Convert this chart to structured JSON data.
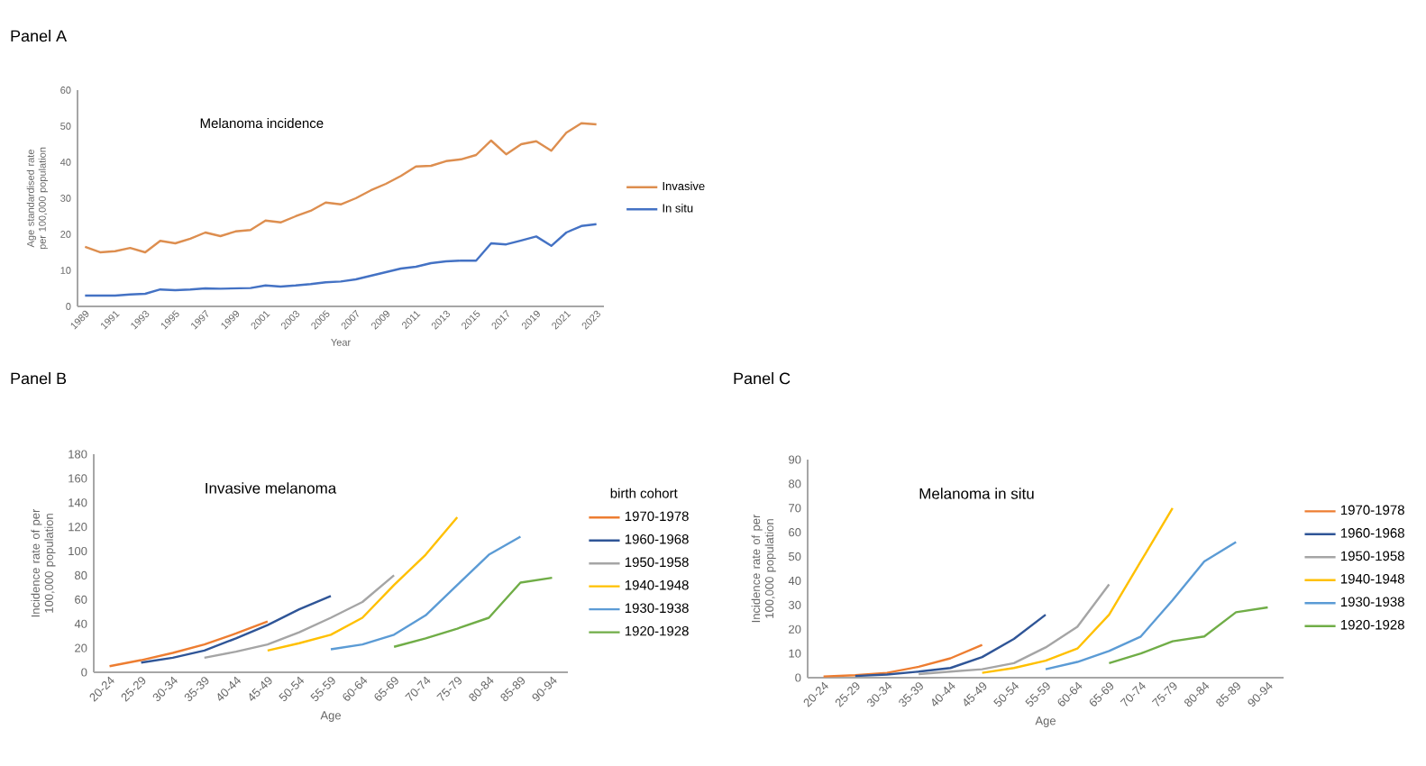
{
  "chart_data": [
    {
      "type": "line",
      "title": "Panel A",
      "subtitle": "Melanoma incidence",
      "xlabel": "Year",
      "ylabel": "Age standardised rate per 100,000 population",
      "categories": [
        "1989",
        null,
        "1991",
        null,
        "1993",
        null,
        "1995",
        null,
        "1997",
        null,
        "1999",
        null,
        "2001",
        null,
        "2003",
        null,
        "2005",
        null,
        "2007",
        null,
        "2009",
        null,
        "2011",
        null,
        "2013",
        null,
        "2015",
        null,
        "2017",
        null,
        "2019",
        null,
        "2021",
        null,
        "2023"
      ],
      "series": [
        {
          "name": "Invasive",
          "color": "#DD8E4F",
          "values": [
            16.5,
            15,
            15.3,
            16.2,
            15,
            18.2,
            17.5,
            18.8,
            20.5,
            19.5,
            20.8,
            21.2,
            23.8,
            23.3,
            25,
            26.5,
            28.8,
            28.3,
            30,
            32.2,
            34,
            36.2,
            38.8,
            39,
            40.3,
            40.8,
            42,
            46,
            42.2,
            45,
            45.8,
            43.2,
            48.2,
            50.8,
            50.5
          ]
        },
        {
          "name": "In situ",
          "color": "#4472C4",
          "values": [
            3,
            3,
            3,
            3.3,
            3.5,
            4.7,
            4.5,
            4.7,
            5,
            4.9,
            5,
            5.1,
            5.8,
            5.5,
            5.8,
            6.2,
            6.7,
            6.9,
            7.5,
            8.5,
            9.5,
            10.5,
            11,
            12,
            12.5,
            12.7,
            12.7,
            17.5,
            17.2,
            18.3,
            19.4,
            16.8,
            20.5,
            22.3,
            22.8
          ]
        }
      ],
      "ylim": [
        0,
        60
      ],
      "yticks": [
        0,
        10,
        20,
        30,
        40,
        50,
        60
      ],
      "legend": "right"
    },
    {
      "type": "line",
      "title": "Panel B",
      "subtitle": "Invasive melanoma",
      "xlabel": "Age",
      "ylabel": "Incidence rate of per 100,000 population",
      "legend_title": "birth cohort",
      "categories": [
        "20-24",
        "25-29",
        "30-34",
        "35-39",
        "40-44",
        "45-49",
        "50-54",
        "55-59",
        "60-64",
        "65-69",
        "70-74",
        "75-79",
        "80-84",
        "85-89",
        "90-94"
      ],
      "series": [
        {
          "name": "1970-1978",
          "color": "#ED7D31",
          "values": [
            5,
            10,
            16,
            23,
            32,
            42,
            null,
            null,
            null,
            null,
            null,
            null,
            null,
            null,
            null
          ]
        },
        {
          "name": "1960-1968",
          "color": "#2F5597",
          "values": [
            null,
            8,
            12,
            18,
            28,
            39,
            52,
            63,
            null,
            null,
            null,
            null,
            null,
            null,
            null
          ]
        },
        {
          "name": "1950-1958",
          "color": "#A5A5A5",
          "values": [
            null,
            null,
            null,
            12,
            17,
            23,
            33,
            45,
            58,
            80,
            null,
            null,
            null,
            null,
            null
          ]
        },
        {
          "name": "1940-1948",
          "color": "#FFC000",
          "values": [
            null,
            null,
            null,
            null,
            null,
            18,
            24,
            31,
            45,
            72,
            97,
            128,
            null,
            null,
            null
          ]
        },
        {
          "name": "1930-1938",
          "color": "#5B9BD5",
          "values": [
            null,
            null,
            null,
            null,
            null,
            null,
            null,
            19,
            23,
            31,
            47,
            72,
            97,
            112,
            null
          ]
        },
        {
          "name": "1920-1928",
          "color": "#70AD47",
          "values": [
            null,
            null,
            null,
            null,
            null,
            null,
            null,
            null,
            null,
            21,
            28,
            36,
            45,
            74,
            78
          ]
        }
      ],
      "ylim": [
        0,
        180
      ],
      "yticks": [
        0,
        20,
        40,
        60,
        80,
        100,
        120,
        140,
        160,
        180
      ],
      "legend": "right"
    },
    {
      "type": "line",
      "title": "Panel C",
      "subtitle": "Melanoma in situ",
      "xlabel": "Age",
      "ylabel": "Incidence rate of per 100,000 population",
      "categories": [
        "20-24",
        "25-29",
        "30-34",
        "35-39",
        "40-44",
        "45-49",
        "50-54",
        "55-59",
        "60-64",
        "65-69",
        "70-74",
        "75-79",
        "80-84",
        "85-89",
        "90-94"
      ],
      "series": [
        {
          "name": "1970-1978",
          "color": "#ED7D31",
          "values": [
            0.5,
            1,
            2,
            4.5,
            8,
            13.5,
            null,
            null,
            null,
            null,
            null,
            null,
            null,
            null,
            null
          ]
        },
        {
          "name": "1960-1968",
          "color": "#2F5597",
          "values": [
            null,
            0.7,
            1.3,
            2.5,
            4,
            8.5,
            16,
            26,
            null,
            null,
            null,
            null,
            null,
            null,
            null
          ]
        },
        {
          "name": "1950-1958",
          "color": "#A5A5A5",
          "values": [
            null,
            null,
            null,
            1.5,
            2.5,
            3.5,
            6,
            12.5,
            21,
            38.5,
            null,
            null,
            null,
            null,
            null
          ]
        },
        {
          "name": "1940-1948",
          "color": "#FFC000",
          "values": [
            null,
            null,
            null,
            null,
            null,
            2,
            4,
            7,
            12,
            26,
            48,
            70,
            null,
            null,
            null
          ]
        },
        {
          "name": "1930-1938",
          "color": "#5B9BD5",
          "values": [
            null,
            null,
            null,
            null,
            null,
            null,
            null,
            3.5,
            6.5,
            11,
            17,
            32,
            48,
            56,
            null
          ]
        },
        {
          "name": "1920-1928",
          "color": "#70AD47",
          "values": [
            null,
            null,
            null,
            null,
            null,
            null,
            null,
            null,
            null,
            6,
            10,
            15,
            17,
            27,
            29
          ]
        }
      ],
      "ylim": [
        0,
        90
      ],
      "yticks": [
        0,
        10,
        20,
        30,
        40,
        50,
        60,
        70,
        80,
        90
      ],
      "legend": "right"
    }
  ]
}
